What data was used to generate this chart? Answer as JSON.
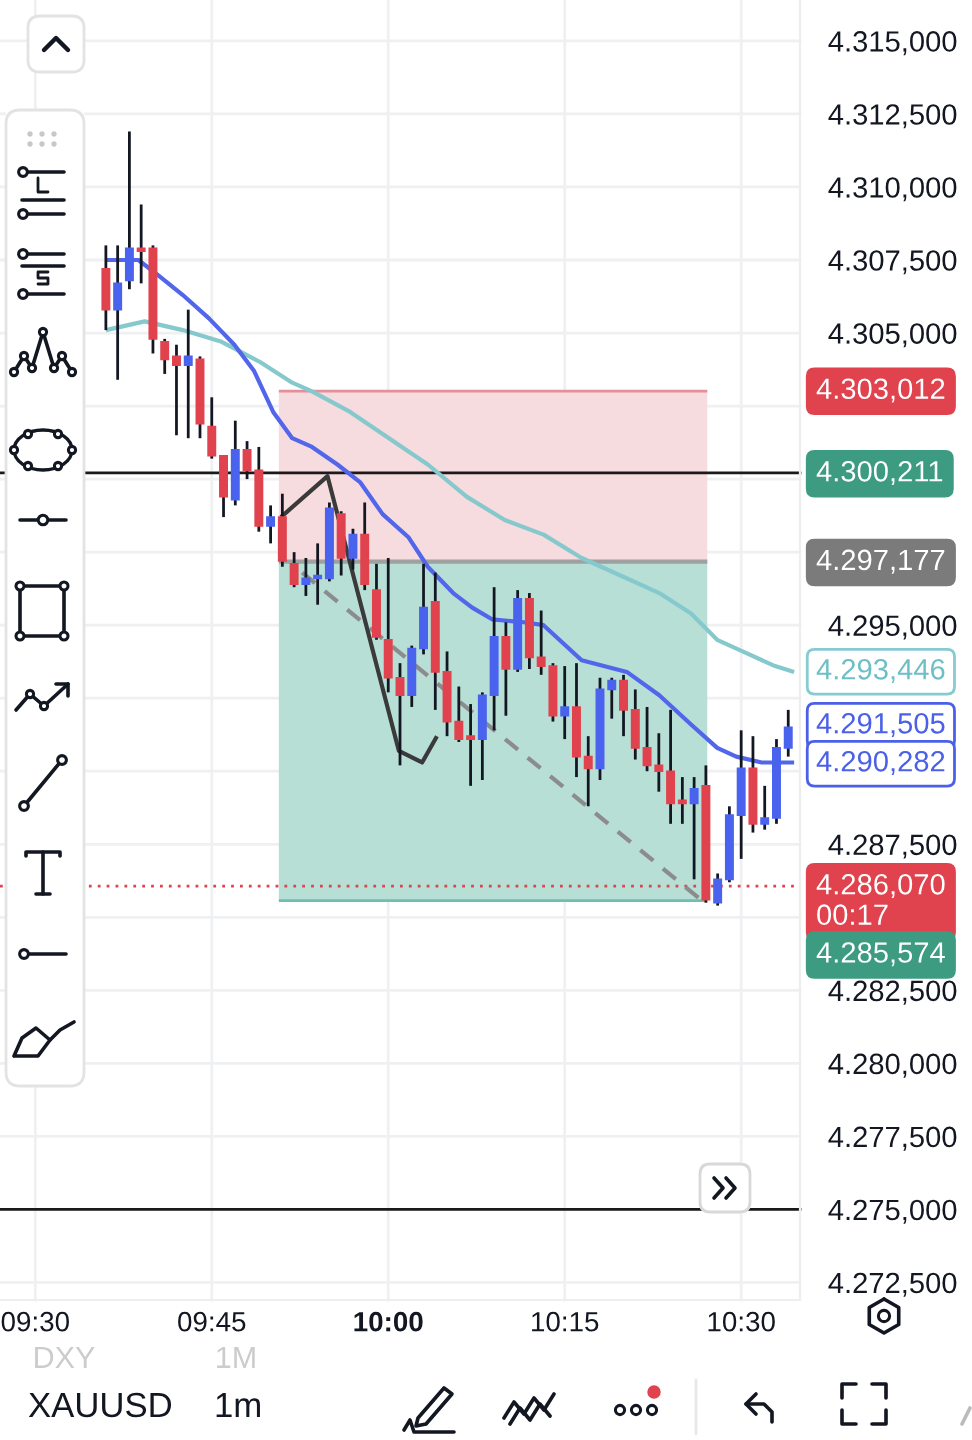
{
  "chart_data": {
    "type": "candlestick",
    "xlim": [
      9.45,
      10.58333
    ],
    "ylim": [
      4271.9,
      4316.4
    ],
    "xticks": [
      {
        "value": 9.5,
        "label": "09:30"
      },
      {
        "value": 9.75,
        "label": "09:45"
      },
      {
        "value": 10.0,
        "label": "10:00"
      },
      {
        "value": 10.25,
        "label": "10:15"
      },
      {
        "value": 10.5,
        "label": "10:30"
      }
    ],
    "yticks": [
      {
        "value": 4272.5,
        "label": "4.272,500"
      },
      {
        "value": 4275.0,
        "label": "4.275,000"
      },
      {
        "value": 4277.5,
        "label": "4.277,500"
      },
      {
        "value": 4280.0,
        "label": "4.280,000"
      },
      {
        "value": 4282.5,
        "label": "4.282,500"
      },
      {
        "value": 4285.0,
        "label": null
      },
      {
        "value": 4287.5,
        "label": "4.287,500"
      },
      {
        "value": 4290.0,
        "label": null
      },
      {
        "value": 4292.5,
        "label": null
      },
      {
        "value": 4295.0,
        "label": "4.295,000"
      },
      {
        "value": 4297.5,
        "label": null
      },
      {
        "value": 4300.0,
        "label": null
      },
      {
        "value": 4302.5,
        "label": null
      },
      {
        "value": 4305.0,
        "label": "4.305,000"
      },
      {
        "value": 4307.5,
        "label": "4.307,500"
      },
      {
        "value": 4310.0,
        "label": "4.310,000"
      },
      {
        "value": 4312.5,
        "label": "4.312,500"
      },
      {
        "value": 4315.0,
        "label": "4.315,000"
      }
    ],
    "grid": true,
    "series": [
      {
        "type": "line",
        "color": "#e2909a",
        "x": [
          9.845,
          10.452
        ],
        "values": [
          4303.012,
          4303.012
        ],
        "lower": [
          4297.177,
          4297.177
        ],
        "upper": [
          4303.012,
          4303.012
        ]
      },
      {
        "type": "line",
        "color": "#6fbfae",
        "x": [
          9.845,
          10.452
        ],
        "values": [
          4285.574,
          4285.574
        ],
        "lower": [
          4285.574,
          4285.574
        ],
        "upper": [
          4297.177,
          4297.177
        ]
      },
      {
        "type": "line",
        "color": "#a0a0a0",
        "x": [
          9.845,
          10.452
        ],
        "values": [
          4297.177,
          4297.177
        ]
      },
      {
        "type": "line",
        "color": "#86c9cd",
        "x": [
          9.6,
          9.655,
          9.709,
          9.764,
          9.819,
          9.864,
          9.892,
          9.946,
          10.001,
          10.056,
          10.111,
          10.165,
          10.22,
          10.274,
          10.329,
          10.384,
          10.429,
          10.466,
          10.502,
          10.548,
          10.575
        ],
        "values": [
          4305.1,
          4305.4,
          4305.1,
          4304.7,
          4304.0,
          4303.3,
          4303.0,
          4302.3,
          4301.4,
          4300.5,
          4299.4,
          4298.6,
          4298.1,
          4297.3,
          4296.7,
          4296.1,
          4295.4,
          4294.5,
          4294.1,
          4293.6,
          4293.4
        ]
      },
      {
        "type": "line",
        "color": "#5166ea",
        "x": [
          9.6,
          9.646,
          9.673,
          9.709,
          9.746,
          9.782,
          9.81,
          9.837,
          9.864,
          9.892,
          9.928,
          9.96,
          9.992,
          10.029,
          10.056,
          10.092,
          10.119,
          10.147,
          10.192,
          10.22,
          10.274,
          10.338,
          10.384,
          10.429,
          10.466,
          10.493,
          10.529,
          10.575
        ],
        "values": [
          4307.5,
          4307.5,
          4307.0,
          4306.3,
          4305.5,
          4304.6,
          4303.7,
          4302.3,
          4301.4,
          4301.1,
          4300.5,
          4299.9,
          4298.8,
          4298.0,
          4297.0,
          4296.1,
          4295.6,
          4295.2,
          4295.1,
          4295.0,
          4293.8,
          4293.4,
          4292.6,
          4291.6,
          4290.8,
          4290.5,
          4290.3,
          4290.3
        ]
      },
      {
        "type": "line",
        "color": "#8c8c8c",
        "line_style": "dashed",
        "x": [
          9.878,
          10.443
        ],
        "values": [
          4296.8,
          4285.6
        ]
      },
      {
        "type": "line",
        "color": "#3a3a3a",
        "x": [
          9.848,
          9.914,
          10.015,
          10.048,
          10.069
        ],
        "values": [
          4298.7,
          4300.1,
          4290.7,
          4290.3,
          4291.2
        ]
      },
      {
        "x": [
          9.6,
          9.61667,
          9.63333,
          9.65,
          9.66667,
          9.68333,
          9.7,
          9.71667,
          9.73333,
          9.75,
          9.76667,
          9.78333,
          9.8,
          9.81667,
          9.83333,
          9.85,
          9.86667,
          9.88333,
          9.9,
          9.91667,
          9.93333,
          9.95,
          9.96667,
          9.98333,
          10.0,
          10.01667,
          10.03333,
          10.05,
          10.06667,
          10.08333,
          10.1,
          10.11667,
          10.13333,
          10.15,
          10.16667,
          10.18333,
          10.2,
          10.21667,
          10.23333,
          10.25,
          10.26667,
          10.28333,
          10.3,
          10.31667,
          10.33333,
          10.35,
          10.36667,
          10.38333,
          10.4,
          10.41667,
          10.43333,
          10.45,
          10.46667,
          10.48333,
          10.5,
          10.51667,
          10.53333,
          10.55,
          10.56667
        ],
        "ohlc": [
          [
            4307.2,
            4308.0,
            4305.1,
            4305.8
          ],
          [
            4305.8,
            4308.0,
            4303.4,
            4306.7
          ],
          [
            4306.8,
            4311.9,
            4306.5,
            4307.9
          ],
          [
            4307.9,
            4309.4,
            4306.7,
            4307.8
          ],
          [
            4307.9,
            4308.0,
            4304.3,
            4304.8
          ],
          [
            4304.7,
            4304.8,
            4303.6,
            4304.1
          ],
          [
            4304.2,
            4304.6,
            4301.5,
            4303.9
          ],
          [
            4303.9,
            4305.8,
            4301.4,
            4304.2
          ],
          [
            4304.1,
            4304.2,
            4301.4,
            4301.9
          ],
          [
            4301.8,
            4302.8,
            4300.7,
            4300.8
          ],
          [
            4300.8,
            4300.8,
            4298.7,
            4299.4
          ],
          [
            4299.3,
            4302.0,
            4299.1,
            4301.0
          ],
          [
            4301.0,
            4301.3,
            4300.0,
            4300.3
          ],
          [
            4300.3,
            4301.1,
            4298.2,
            4298.4
          ],
          [
            4298.4,
            4299.1,
            4297.8,
            4298.7
          ],
          [
            4298.7,
            4299.5,
            4297.0,
            4297.2
          ],
          [
            4297.1,
            4297.5,
            4296.3,
            4296.4
          ],
          [
            4296.4,
            4297.3,
            4296.0,
            4296.6
          ],
          [
            4296.6,
            4297.8,
            4295.7,
            4296.7
          ],
          [
            4296.6,
            4299.2,
            4296.5,
            4299.0
          ],
          [
            4298.8,
            4298.9,
            4296.7,
            4297.3
          ],
          [
            4297.3,
            4298.3,
            4296.9,
            4298.1
          ],
          [
            4298.1,
            4299.2,
            4296.2,
            4296.4
          ],
          [
            4296.2,
            4297.1,
            4294.5,
            4294.6
          ],
          [
            4294.5,
            4297.3,
            4292.7,
            4293.2
          ],
          [
            4293.2,
            4293.7,
            4290.2,
            4292.6
          ],
          [
            4292.6,
            4294.3,
            4292.2,
            4294.2
          ],
          [
            4294.2,
            4297.1,
            4294.0,
            4295.6
          ],
          [
            4295.8,
            4296.8,
            4292.1,
            4293.4
          ],
          [
            4293.4,
            4294.1,
            4291.2,
            4291.7
          ],
          [
            4291.7,
            4292.9,
            4291.0,
            4291.1
          ],
          [
            4291.2,
            4292.3,
            4289.5,
            4291.1
          ],
          [
            4291.1,
            4292.7,
            4289.7,
            4292.6
          ],
          [
            4292.6,
            4296.3,
            4291.4,
            4294.6
          ],
          [
            4294.6,
            4295.1,
            4291.9,
            4293.5
          ],
          [
            4293.5,
            4296.2,
            4293.4,
            4295.9
          ],
          [
            4295.9,
            4296.1,
            4293.5,
            4293.9
          ],
          [
            4293.9,
            4295.5,
            4293.3,
            4293.6
          ],
          [
            4293.6,
            4293.7,
            4291.7,
            4291.9
          ],
          [
            4291.9,
            4293.6,
            4291.1,
            4292.2
          ],
          [
            4292.2,
            4293.7,
            4289.8,
            4290.5
          ],
          [
            4290.5,
            4291.2,
            4288.8,
            4290.1
          ],
          [
            4290.1,
            4293.2,
            4289.7,
            4292.8
          ],
          [
            4292.8,
            4293.2,
            4291.8,
            4293.1
          ],
          [
            4293.1,
            4293.3,
            4291.2,
            4292.1
          ],
          [
            4292.1,
            4292.8,
            4290.4,
            4290.8
          ],
          [
            4290.8,
            4292.2,
            4290.0,
            4290.2
          ],
          [
            4290.2,
            4291.3,
            4289.3,
            4290.0
          ],
          [
            4290.0,
            4292.1,
            4288.2,
            4288.9
          ],
          [
            4289.0,
            4289.8,
            4288.2,
            4288.9
          ],
          [
            4288.9,
            4289.8,
            4286.3,
            4289.4
          ],
          [
            4289.5,
            4290.2,
            4285.5,
            4285.6
          ],
          [
            4285.5,
            4286.5,
            4285.4,
            4286.3
          ],
          [
            4286.3,
            4288.8,
            4286.2,
            4288.5
          ],
          [
            4288.5,
            4291.4,
            4287.0,
            4290.1
          ],
          [
            4290.1,
            4291.2,
            4287.9,
            4288.2
          ],
          [
            4288.2,
            4289.5,
            4288.0,
            4288.4
          ],
          [
            4288.4,
            4291.1,
            4288.2,
            4290.8
          ],
          [
            4290.8,
            4292.1,
            4290.5,
            4291.5
          ]
        ],
        "colors": [
          "#e0434e",
          "#4a63ee",
          "#4a63ee",
          "#e0434e",
          "#e0434e",
          "#e0434e",
          "#e0434e",
          "#4a63ee",
          "#e0434e",
          "#e0434e",
          "#e0434e",
          "#4a63ee",
          "#e0434e",
          "#e0434e",
          "#4a63ee",
          "#e0434e",
          "#e0434e",
          "#4a63ee",
          "#4a63ee",
          "#4a63ee",
          "#e0434e",
          "#4a63ee",
          "#e0434e",
          "#e0434e",
          "#e0434e",
          "#e0434e",
          "#4a63ee",
          "#4a63ee",
          "#e0434e",
          "#e0434e",
          "#e0434e",
          "#e0434e",
          "#4a63ee",
          "#4a63ee",
          "#e0434e",
          "#4a63ee",
          "#e0434e",
          "#e0434e",
          "#e0434e",
          "#4a63ee",
          "#e0434e",
          "#e0434e",
          "#4a63ee",
          "#4a63ee",
          "#e0434e",
          "#e0434e",
          "#e0434e",
          "#e0434e",
          "#e0434e",
          "#e0434e",
          "#4a63ee",
          "#e0434e",
          "#4a63ee",
          "#4a63ee",
          "#4a63ee",
          "#e0434e",
          "#4a63ee",
          "#4a63ee",
          "#4a63ee"
        ]
      }
    ],
    "ref_lines": [
      {
        "axis": "y",
        "value": 4300.211,
        "color": "#1a1a1a"
      },
      {
        "axis": "y",
        "value": 4275.0,
        "color": "#1a1a1a"
      },
      {
        "axis": "y",
        "value": 4286.07,
        "color": "#e0434e",
        "line_style": "dotted"
      }
    ],
    "annotations": [
      "4.303,012",
      "4.300,211",
      "4.297,177",
      "4.293,446",
      "4.291,505",
      "4.290,282",
      "4.286,070\n00:17",
      "4.285,574",
      "DXY",
      "1M",
      "XAUUSD",
      "1m"
    ]
  }
}
